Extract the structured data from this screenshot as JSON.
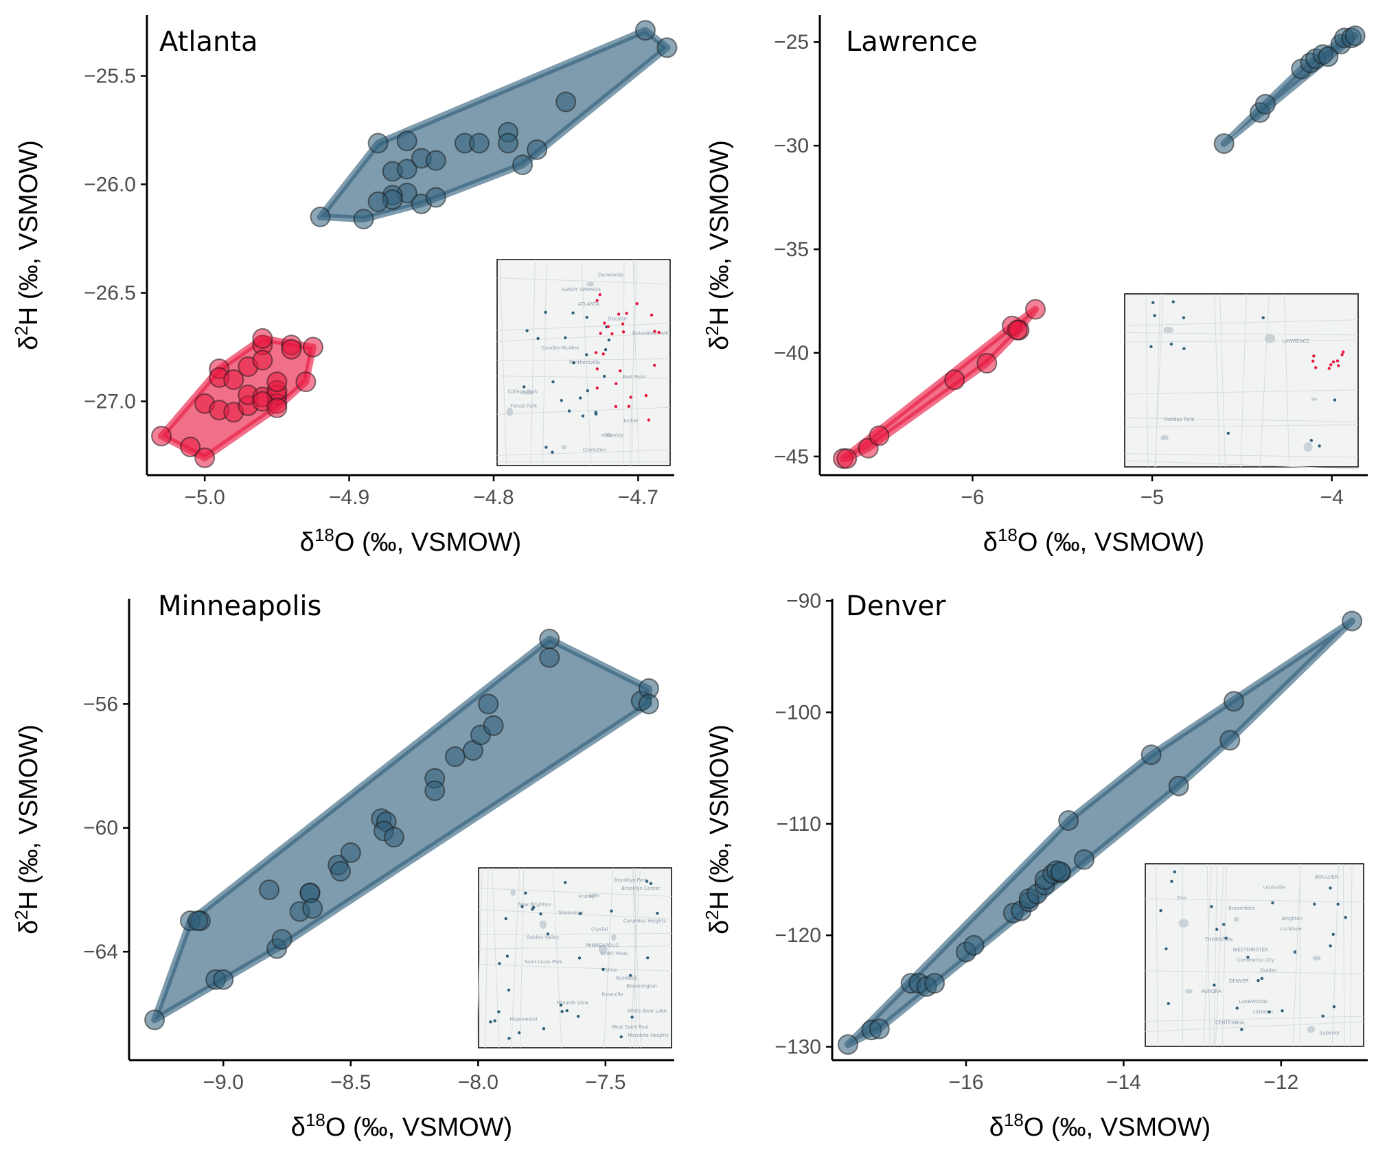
{
  "colors": {
    "blue": "#2f5f7a",
    "red": "#e8173f",
    "axis": "#000000",
    "tick_text": "#4d4d4d",
    "map_bg": "#f2f4f3",
    "map_road": "#d8dcdc",
    "map_water": "#c9d2d6"
  },
  "chart_data": [
    {
      "type": "scatter",
      "title": "Atlanta",
      "xlabel": "δ18O (‰, VSMOW)",
      "ylabel": "δ2H (‰, VSMOW)",
      "xlim": [
        -5.04,
        -4.675
      ],
      "ylim": [
        -27.34,
        -25.22
      ],
      "xticks": [
        -5.0,
        -4.9,
        -4.8,
        -4.7
      ],
      "yticks": [
        -25.5,
        -26.0,
        -26.5,
        -27.0
      ],
      "xtick_labels": [
        "−5.0",
        "−4.9",
        "−4.8",
        "−4.7"
      ],
      "ytick_labels": [
        "−25.5",
        "−26.0",
        "−26.5",
        "−27.0"
      ],
      "series": [
        {
          "color": "#2f5f7a",
          "hull": true,
          "x": [
            -4.92,
            -4.89,
            -4.88,
            -4.87,
            -4.86,
            -4.86,
            -4.85,
            -4.84,
            -4.86,
            -4.87,
            -4.87,
            -4.88,
            -4.85,
            -4.84,
            -4.82,
            -4.81,
            -4.79,
            -4.79,
            -4.78,
            -4.77,
            -4.75,
            -4.695,
            -4.68
          ],
          "y": [
            -26.15,
            -26.16,
            -25.81,
            -25.94,
            -25.8,
            -25.93,
            -25.88,
            -25.89,
            -26.04,
            -26.05,
            -26.07,
            -26.08,
            -26.09,
            -26.06,
            -25.81,
            -25.81,
            -25.76,
            -25.81,
            -25.91,
            -25.84,
            -25.62,
            -25.29,
            -25.37
          ]
        },
        {
          "color": "#e8173f",
          "hull": true,
          "x": [
            -5.03,
            -5.01,
            -5.0,
            -5.0,
            -4.99,
            -4.99,
            -4.99,
            -4.98,
            -4.98,
            -4.97,
            -4.97,
            -4.96,
            -4.96,
            -4.96,
            -4.95,
            -4.95,
            -4.95,
            -4.95,
            -4.94,
            -4.94,
            -4.93,
            -4.925,
            -4.97,
            -4.96,
            -4.96,
            -4.95
          ],
          "y": [
            -27.16,
            -27.21,
            -27.26,
            -27.01,
            -27.04,
            -26.85,
            -26.89,
            -26.9,
            -27.05,
            -27.02,
            -26.97,
            -26.98,
            -26.74,
            -26.71,
            -26.97,
            -27.01,
            -26.95,
            -26.91,
            -26.74,
            -26.76,
            -26.91,
            -26.75,
            -26.84,
            -26.81,
            -27.0,
            -27.03
          ]
        }
      ],
      "inset": {
        "type": "map",
        "labels": [
          "Dunwoody",
          "SANDY SPRINGS",
          "ATLANTA",
          "Decatur",
          "Belvedere Park",
          "Candler-McAfee",
          "Panthersville",
          "East Point",
          "College Park",
          "Forest Park",
          "Tucker",
          "Conley",
          "Clarkston"
        ]
      }
    },
    {
      "type": "scatter",
      "title": "Lawrence",
      "xlabel": "δ18O (‰, VSMOW)",
      "ylabel": "δ2H (‰, VSMOW)",
      "xlim": [
        -6.85,
        -3.8
      ],
      "ylim": [
        -45.9,
        -23.7
      ],
      "xticks": [
        -6,
        -5,
        -4
      ],
      "yticks": [
        -25,
        -30,
        -35,
        -40,
        -45
      ],
      "xtick_labels": [
        "−6",
        "−5",
        "−4"
      ],
      "ytick_labels": [
        "−25",
        "−30",
        "−35",
        "−40",
        "−45"
      ],
      "series": [
        {
          "color": "#2f5f7a",
          "hull": true,
          "x": [
            -4.6,
            -4.4,
            -4.37,
            -4.17,
            -4.12,
            -4.09,
            -4.05,
            -4.02,
            -3.95,
            -3.93,
            -3.89,
            -3.87
          ],
          "y": [
            -29.9,
            -28.4,
            -28.0,
            -26.3,
            -26.0,
            -25.8,
            -25.6,
            -25.7,
            -25.1,
            -24.8,
            -24.8,
            -24.7
          ]
        },
        {
          "color": "#e8173f",
          "hull": true,
          "x": [
            -6.72,
            -6.7,
            -6.58,
            -6.52,
            -6.1,
            -5.92,
            -5.78,
            -5.74,
            -5.75,
            -5.65
          ],
          "y": [
            -45.1,
            -45.1,
            -44.6,
            -44.0,
            -41.3,
            -40.5,
            -38.7,
            -38.9,
            -38.9,
            -37.9
          ]
        }
      ],
      "inset": {
        "type": "map",
        "labels": [
          "LAWRENCE",
          "Holiday Park"
        ]
      }
    },
    {
      "type": "scatter",
      "title": "Minneapolis",
      "xlabel": "δ18O (‰, VSMOW)",
      "ylabel": "δ2H (‰, VSMOW)",
      "xlim": [
        -9.37,
        -7.23
      ],
      "ylim": [
        -67.5,
        -52.6
      ],
      "xticks": [
        -9.0,
        -8.5,
        -8.0,
        -7.5
      ],
      "yticks": [
        -56,
        -60,
        -64
      ],
      "xtick_labels": [
        "−9.0",
        "−8.5",
        "−8.0",
        "−7.5"
      ],
      "ytick_labels": [
        "−56",
        "−60",
        "−64"
      ],
      "series": [
        {
          "color": "#2f5f7a",
          "hull": true,
          "x": [
            -9.27,
            -9.13,
            -9.09,
            -9.1,
            -9.03,
            -9.0,
            -8.82,
            -8.79,
            -8.77,
            -8.7,
            -8.66,
            -8.66,
            -8.65,
            -8.55,
            -8.54,
            -8.5,
            -8.38,
            -8.36,
            -8.37,
            -8.33,
            -8.17,
            -8.17,
            -8.09,
            -8.02,
            -7.99,
            -7.96,
            -7.94,
            -7.72,
            -7.72,
            -7.36,
            -7.33,
            -7.33
          ],
          "y": [
            -66.2,
            -63.0,
            -63.0,
            -63.0,
            -64.9,
            -64.9,
            -62.0,
            -63.9,
            -63.6,
            -62.7,
            -62.1,
            -62.1,
            -62.6,
            -61.2,
            -61.4,
            -60.8,
            -59.7,
            -59.8,
            -60.1,
            -60.3,
            -58.4,
            -58.8,
            -57.7,
            -57.5,
            -57.0,
            -56.0,
            -56.7,
            -53.9,
            -54.5,
            -55.9,
            -55.5,
            -56.0
          ]
        }
      ],
      "inset": {
        "type": "map",
        "labels": [
          "Brooklyn Park",
          "Brooklyn Center",
          "Fridley",
          "New Brighton",
          "Shoreview",
          "Columbia Heights",
          "Crystal",
          "Golden Valley",
          "MINNEAPOLIS",
          "SAINT PAUL",
          "Saint Louis Park",
          "Edina",
          "Richfield",
          "Bloomington",
          "Roseville",
          "Mounds View",
          "White Bear Lake",
          "Maplewood",
          "West Saint Paul",
          "Mendota Heights"
        ]
      }
    },
    {
      "type": "scatter",
      "title": "Denver",
      "xlabel": "δ18O (‰, VSMOW)",
      "ylabel": "δ2H (‰, VSMOW)",
      "xlim": [
        -17.7,
        -10.9
      ],
      "ylim": [
        -131.2,
        -89.8
      ],
      "xticks": [
        -16,
        -14,
        -12
      ],
      "yticks": [
        -90,
        -100,
        -110,
        -120,
        -130
      ],
      "xtick_labels": [
        "−16",
        "−14",
        "−12"
      ],
      "ytick_labels": [
        "−90",
        "−100",
        "−110",
        "−120",
        "−130"
      ],
      "series": [
        {
          "color": "#2f5f7a",
          "hull": true,
          "x": [
            -17.5,
            -17.2,
            -17.1,
            -16.7,
            -16.6,
            -16.5,
            -16.4,
            -16.0,
            -15.9,
            -15.4,
            -15.3,
            -15.2,
            -15.2,
            -15.1,
            -15.0,
            -15.0,
            -14.9,
            -14.8,
            -14.85,
            -14.8,
            -14.7,
            -14.5,
            -13.65,
            -13.3,
            -12.65,
            -12.6,
            -11.1
          ],
          "y": [
            -129.8,
            -128.5,
            -128.4,
            -124.3,
            -124.3,
            -124.6,
            -124.3,
            -121.5,
            -120.9,
            -118.0,
            -117.8,
            -117.0,
            -116.7,
            -116.3,
            -115.5,
            -115.0,
            -114.5,
            -114.4,
            -114.2,
            -114.3,
            -109.7,
            -113.2,
            -103.8,
            -106.6,
            -102.5,
            -99.0,
            -91.8
          ]
        }
      ],
      "inset": {
        "type": "map",
        "labels": [
          "BOULDER",
          "Louisville",
          "Erie",
          "Broomfield",
          "Brighton",
          "Lochbuie",
          "THORNTON",
          "WESTMINSTER",
          "Commerce City",
          "Golden",
          "DENVER",
          "AURORA",
          "LAKEWOOD",
          "Littleton",
          "CENTENNIAL",
          "Superior"
        ]
      }
    }
  ]
}
